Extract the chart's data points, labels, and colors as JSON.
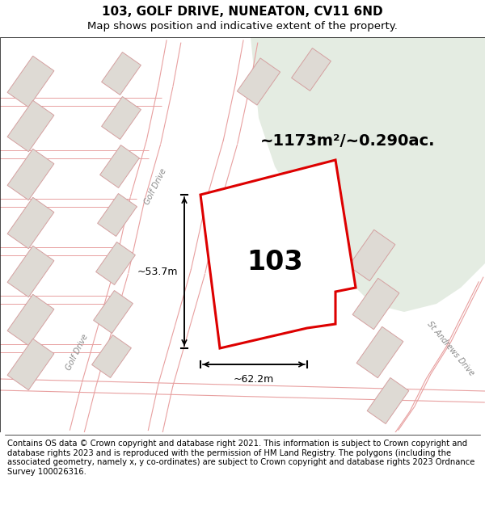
{
  "title_line1": "103, GOLF DRIVE, NUNEATON, CV11 6ND",
  "title_line2": "Map shows position and indicative extent of the property.",
  "footer_text": "Contains OS data © Crown copyright and database right 2021. This information is subject to Crown copyright and database rights 2023 and is reproduced with the permission of HM Land Registry. The polygons (including the associated geometry, namely x, y co-ordinates) are subject to Crown copyright and database rights 2023 Ordnance Survey 100026316.",
  "area_label": "~1173m²/~0.290ac.",
  "property_number": "103",
  "dim_width": "~62.2m",
  "dim_height": "~53.7m",
  "road_label_golf1": "Golf Drive",
  "road_label_golf2": "Golf Drive",
  "road_label_st": "St Andrews Drive",
  "map_bg": "#f2eeea",
  "green_color": "#e4ece2",
  "property_fill": "#ffffff",
  "property_edge": "#dd0000",
  "building_fill": "#dedad4",
  "building_edge": "#d4a0a0",
  "road_line_color": "#e8a0a0",
  "dim_color": "#000000",
  "title_fontsize": 11,
  "subtitle_fontsize": 9.5,
  "footer_fontsize": 7.2,
  "area_fontsize": 14,
  "label_103_fontsize": 24
}
